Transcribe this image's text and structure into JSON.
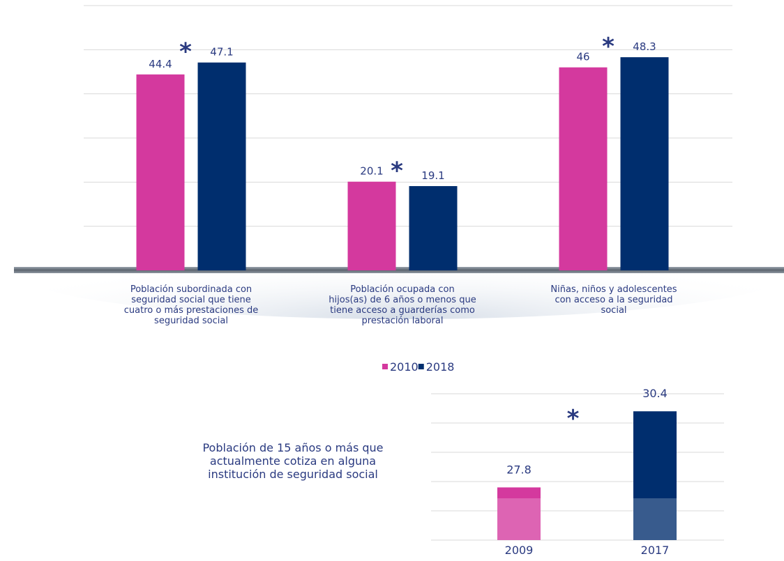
{
  "chart_data": [
    {
      "type": "bar",
      "categories": [
        "Población subordinada con\nseguridad social que tiene\ncuatro o más prestaciones de\nseguridad social",
        "Población ocupada con\nhijos(as) de 6 años o menos que\ntiene acceso a guarderías como\nprestación laboral",
        "Niñas, niños y adolescentes\ncon acceso a la seguridad\nsocial"
      ],
      "series": [
        {
          "name": "2010",
          "color": "#d4399e",
          "values": [
            44.4,
            20.1,
            46
          ]
        },
        {
          "name": "2018",
          "color": "#002e6e",
          "values": [
            47.1,
            19.1,
            48.3
          ]
        }
      ],
      "ylim": [
        0,
        60
      ],
      "yticks": [
        0,
        10,
        20,
        30,
        40,
        50,
        60
      ],
      "grid": true,
      "annotations": [
        "*",
        "*",
        "*"
      ],
      "legend": "bottom"
    },
    {
      "type": "bar",
      "title": "Población de 15 años o más que\nactualmente cotiza en alguna\ninstitución de seguridad social",
      "categories": [
        "2009",
        "2017"
      ],
      "values": [
        27.8,
        30.4
      ],
      "colors": [
        "#d4399e",
        "#002e6e"
      ],
      "ylim": [
        26,
        31
      ],
      "yticks": [
        26,
        27,
        28,
        29,
        30,
        31
      ],
      "grid": true,
      "annotations": [
        "*"
      ]
    }
  ]
}
